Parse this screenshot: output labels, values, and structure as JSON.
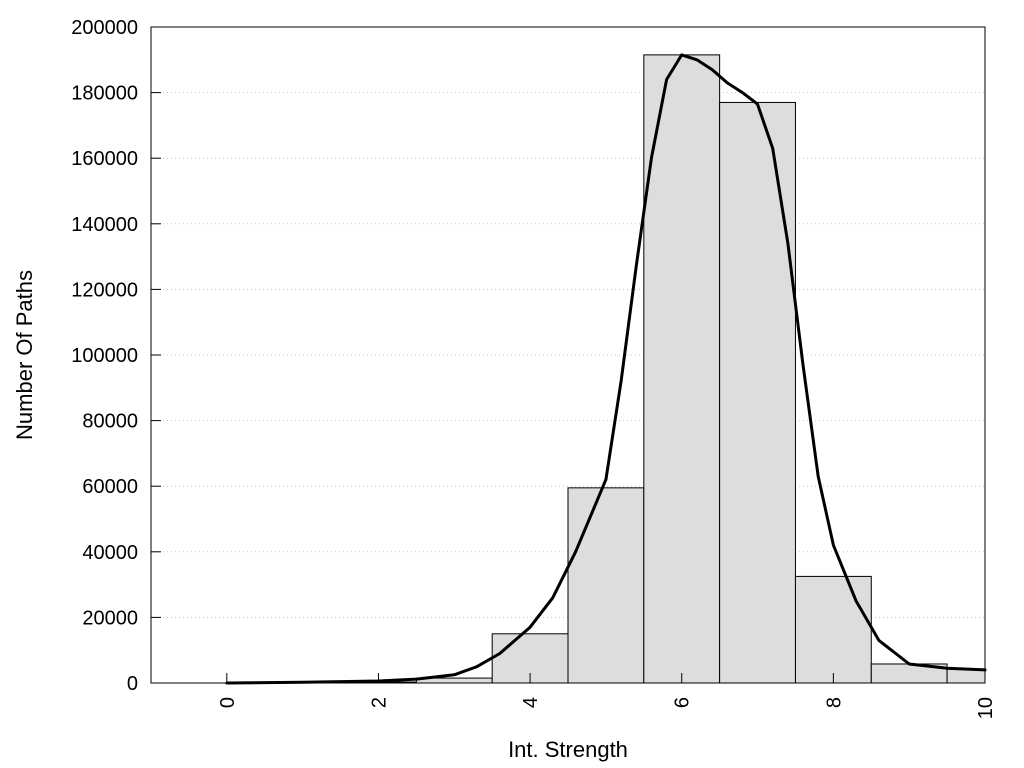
{
  "chart_data": {
    "type": "bar",
    "title": "",
    "xlabel": "Int. Strength",
    "ylabel": "Number Of Paths",
    "xlim": [
      -1,
      10
    ],
    "ylim": [
      0,
      200000
    ],
    "grid": "horizontal-dotted",
    "xticks": [
      0,
      2,
      4,
      6,
      8,
      10
    ],
    "xtick_labels": [
      "0",
      "2",
      "4",
      "6",
      "8",
      "10"
    ],
    "yticks": [
      0,
      20000,
      40000,
      60000,
      80000,
      100000,
      120000,
      140000,
      160000,
      180000,
      200000
    ],
    "ytick_labels": [
      "0",
      "20000",
      "40000",
      "60000",
      "80000",
      "100000",
      "120000",
      "140000",
      "160000",
      "180000",
      "200000"
    ],
    "bins": [
      {
        "x": 0,
        "value": 0
      },
      {
        "x": 1,
        "value": 0
      },
      {
        "x": 2,
        "value": 300
      },
      {
        "x": 3,
        "value": 1500
      },
      {
        "x": 4,
        "value": 15000
      },
      {
        "x": 5,
        "value": 59500
      },
      {
        "x": 6,
        "value": 191500
      },
      {
        "x": 7,
        "value": 177000
      },
      {
        "x": 8,
        "value": 32500
      },
      {
        "x": 9,
        "value": 5800
      },
      {
        "x": 10,
        "value": 4200
      }
    ],
    "bar_width": 1,
    "bar_color": "#dddddd",
    "series": [
      {
        "type": "line",
        "color": "#000000",
        "x": [
          0,
          1,
          2,
          2.5,
          3,
          3.3,
          3.6,
          4,
          4.3,
          4.6,
          5,
          5.2,
          5.4,
          5.6,
          5.8,
          6,
          6.2,
          6.4,
          6.6,
          6.8,
          7,
          7.2,
          7.4,
          7.6,
          7.8,
          8,
          8.3,
          8.6,
          9,
          9.5,
          10
        ],
        "y": [
          0,
          200,
          600,
          1200,
          2500,
          5000,
          9000,
          17000,
          26000,
          40000,
          62000,
          92000,
          127000,
          160000,
          184000,
          191500,
          190000,
          187000,
          183000,
          180000,
          176500,
          163000,
          134000,
          97000,
          63000,
          42000,
          25000,
          13000,
          5800,
          4500,
          4000
        ]
      }
    ]
  }
}
